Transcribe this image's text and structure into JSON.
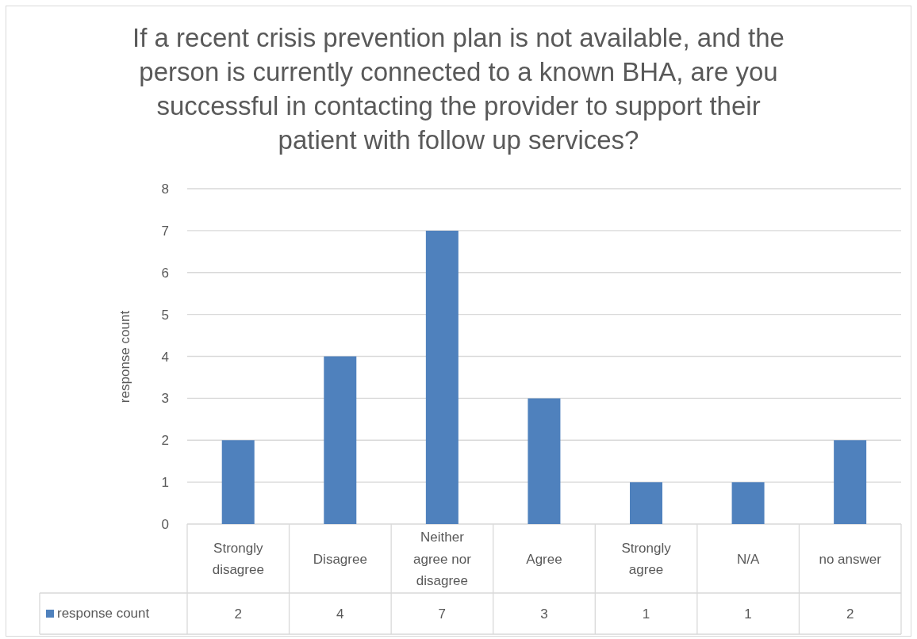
{
  "chart_data": {
    "type": "bar",
    "title": "If a recent crisis prevention plan is not available, and the person is currently connected to a known BHA, are you successful in contacting the provider to support their patient with follow up services?",
    "ylabel": "response count",
    "categories": [
      "Strongly disagree",
      "Disagree",
      "Neither agree nor disagree",
      "Agree",
      "Strongly agree",
      "N/A",
      "no answer"
    ],
    "series": [
      {
        "name": "response count",
        "color": "#4f81bd",
        "values": [
          2,
          4,
          7,
          3,
          1,
          1,
          2
        ]
      }
    ],
    "ylim": [
      0,
      8
    ],
    "yticks": [
      0,
      1,
      2,
      3,
      4,
      5,
      6,
      7,
      8
    ],
    "grid": "y",
    "legend": "bottom left",
    "data_labels": true
  }
}
